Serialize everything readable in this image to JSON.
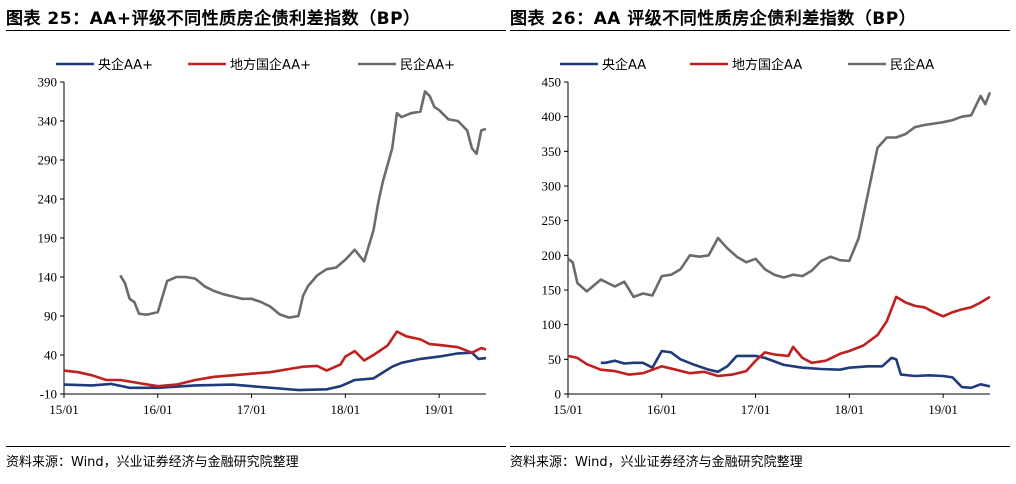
{
  "footer_source": "资料来源：Wind，兴业证券经济与金融研究院整理",
  "chart_data": [
    {
      "type": "line",
      "title": "图表 25：AA+评级不同性质房企债利差指数（BP）",
      "xlabel": "",
      "ylabel": "",
      "x_range": [
        2015.0,
        2019.5
      ],
      "ylim": [
        -10,
        390
      ],
      "y_ticks": [
        -10,
        40,
        90,
        140,
        190,
        240,
        290,
        340,
        390
      ],
      "y_tick_labels": [
        "-10",
        "40",
        "90",
        "140",
        "190",
        "240",
        "290",
        "340",
        "390"
      ],
      "x_ticks": [
        2015.0,
        2016.0,
        2017.0,
        2018.0,
        2019.0
      ],
      "x_tick_labels": [
        "15/01",
        "16/01",
        "17/01",
        "18/01",
        "19/01"
      ],
      "legend_position": "top",
      "grid": false,
      "series": [
        {
          "name": "央企AA+",
          "color": "#1f3b7a",
          "x": [
            2015.0,
            2015.3,
            2015.5,
            2015.7,
            2016.0,
            2016.4,
            2016.8,
            2017.0,
            2017.3,
            2017.5,
            2017.8,
            2017.95,
            2018.1,
            2018.3,
            2018.5,
            2018.6,
            2018.8,
            2019.0,
            2019.2,
            2019.35,
            2019.42,
            2019.5
          ],
          "values": [
            2,
            1,
            3,
            -2,
            -2,
            1,
            2,
            0,
            -3,
            -5,
            -4,
            0,
            8,
            10,
            25,
            30,
            35,
            38,
            42,
            43,
            35,
            36
          ]
        },
        {
          "name": "地方国企AA+",
          "color": "#c0201f",
          "x": [
            2015.0,
            2015.15,
            2015.3,
            2015.45,
            2015.6,
            2015.8,
            2016.0,
            2016.2,
            2016.4,
            2016.6,
            2016.8,
            2017.0,
            2017.2,
            2017.4,
            2017.55,
            2017.7,
            2017.8,
            2017.95,
            2018.0,
            2018.1,
            2018.2,
            2018.3,
            2018.45,
            2018.55,
            2018.65,
            2018.8,
            2018.9,
            2019.0,
            2019.2,
            2019.35,
            2019.45,
            2019.5
          ],
          "values": [
            20,
            18,
            14,
            8,
            8,
            4,
            0,
            2,
            8,
            12,
            14,
            16,
            18,
            22,
            25,
            26,
            20,
            28,
            38,
            45,
            33,
            40,
            52,
            70,
            64,
            60,
            54,
            53,
            50,
            43,
            49,
            47
          ]
        },
        {
          "name": "民企AA+",
          "color": "#6b6b6b",
          "x": [
            2015.6,
            2015.65,
            2015.7,
            2015.75,
            2015.8,
            2015.85,
            2015.9,
            2016.0,
            2016.1,
            2016.2,
            2016.3,
            2016.4,
            2016.5,
            2016.6,
            2016.7,
            2016.8,
            2016.9,
            2017.0,
            2017.1,
            2017.2,
            2017.3,
            2017.4,
            2017.5,
            2017.55,
            2017.6,
            2017.7,
            2017.8,
            2017.9,
            2018.0,
            2018.1,
            2018.2,
            2018.3,
            2018.35,
            2018.4,
            2018.5,
            2018.55,
            2018.6,
            2018.7,
            2018.8,
            2018.85,
            2018.9,
            2018.95,
            2019.0,
            2019.1,
            2019.2,
            2019.3,
            2019.35,
            2019.4,
            2019.45,
            2019.5
          ],
          "values": [
            142,
            132,
            112,
            108,
            93,
            92,
            92,
            95,
            135,
            140,
            140,
            138,
            128,
            122,
            118,
            115,
            112,
            112,
            108,
            102,
            92,
            88,
            90,
            116,
            128,
            142,
            150,
            152,
            162,
            175,
            160,
            200,
            235,
            262,
            305,
            350,
            345,
            350,
            352,
            378,
            372,
            358,
            354,
            342,
            340,
            328,
            305,
            298,
            328,
            330
          ]
        }
      ]
    },
    {
      "type": "line",
      "title": "图表 26：AA 评级不同性质房企债利差指数（BP）",
      "xlabel": "",
      "ylabel": "",
      "x_range": [
        2015.0,
        2019.5
      ],
      "ylim": [
        0,
        450
      ],
      "y_ticks": [
        0,
        50,
        100,
        150,
        200,
        250,
        300,
        350,
        400,
        450
      ],
      "y_tick_labels": [
        "0",
        "50",
        "100",
        "150",
        "200",
        "250",
        "300",
        "350",
        "400",
        "450"
      ],
      "x_ticks": [
        2015.0,
        2016.0,
        2017.0,
        2018.0,
        2019.0
      ],
      "x_tick_labels": [
        "15/01",
        "16/01",
        "17/01",
        "18/01",
        "19/01"
      ],
      "legend_position": "top",
      "grid": false,
      "series": [
        {
          "name": "央企AA",
          "color": "#1f3b7a",
          "x": [
            2015.35,
            2015.4,
            2015.5,
            2015.6,
            2015.7,
            2015.8,
            2015.9,
            2016.0,
            2016.1,
            2016.2,
            2016.35,
            2016.5,
            2016.6,
            2016.7,
            2016.8,
            2016.9,
            2017.0,
            2017.1,
            2017.3,
            2017.5,
            2017.7,
            2017.9,
            2018.0,
            2018.2,
            2018.35,
            2018.45,
            2018.5,
            2018.55,
            2018.7,
            2018.85,
            2019.0,
            2019.1,
            2019.2,
            2019.3,
            2019.4,
            2019.5
          ],
          "values": [
            45,
            45,
            48,
            44,
            45,
            45,
            38,
            62,
            60,
            50,
            42,
            35,
            32,
            40,
            55,
            55,
            55,
            52,
            42,
            38,
            36,
            35,
            38,
            40,
            40,
            52,
            50,
            28,
            26,
            27,
            26,
            24,
            10,
            9,
            14,
            11
          ]
        },
        {
          "name": "地方国企AA",
          "color": "#c0201f",
          "x": [
            2015.0,
            2015.1,
            2015.2,
            2015.35,
            2015.5,
            2015.65,
            2015.8,
            2016.0,
            2016.15,
            2016.3,
            2016.45,
            2016.6,
            2016.75,
            2016.9,
            2017.0,
            2017.1,
            2017.2,
            2017.35,
            2017.4,
            2017.5,
            2017.6,
            2017.75,
            2017.9,
            2018.0,
            2018.15,
            2018.3,
            2018.4,
            2018.5,
            2018.6,
            2018.7,
            2018.8,
            2018.9,
            2019.0,
            2019.1,
            2019.2,
            2019.3,
            2019.4,
            2019.5
          ],
          "values": [
            55,
            52,
            43,
            35,
            33,
            28,
            30,
            40,
            35,
            30,
            32,
            26,
            28,
            33,
            48,
            60,
            57,
            55,
            68,
            52,
            45,
            48,
            58,
            62,
            70,
            85,
            105,
            140,
            132,
            127,
            125,
            118,
            112,
            118,
            122,
            125,
            132,
            140
          ]
        },
        {
          "name": "民企AA",
          "color": "#6b6b6b",
          "x": [
            2015.0,
            2015.05,
            2015.1,
            2015.2,
            2015.35,
            2015.5,
            2015.6,
            2015.7,
            2015.8,
            2015.9,
            2016.0,
            2016.1,
            2016.2,
            2016.3,
            2016.4,
            2016.5,
            2016.6,
            2016.7,
            2016.8,
            2016.9,
            2017.0,
            2017.1,
            2017.2,
            2017.3,
            2017.4,
            2017.5,
            2017.6,
            2017.7,
            2017.8,
            2017.9,
            2018.0,
            2018.1,
            2018.2,
            2018.3,
            2018.4,
            2018.5,
            2018.6,
            2018.7,
            2018.8,
            2018.9,
            2019.0,
            2019.1,
            2019.2,
            2019.3,
            2019.4,
            2019.45,
            2019.5
          ],
          "values": [
            195,
            190,
            160,
            148,
            165,
            155,
            162,
            140,
            145,
            142,
            170,
            172,
            180,
            200,
            198,
            200,
            225,
            210,
            198,
            190,
            195,
            180,
            172,
            168,
            172,
            170,
            178,
            192,
            198,
            193,
            192,
            225,
            290,
            355,
            370,
            370,
            375,
            385,
            388,
            390,
            392,
            395,
            400,
            402,
            430,
            418,
            435
          ]
        }
      ]
    }
  ]
}
